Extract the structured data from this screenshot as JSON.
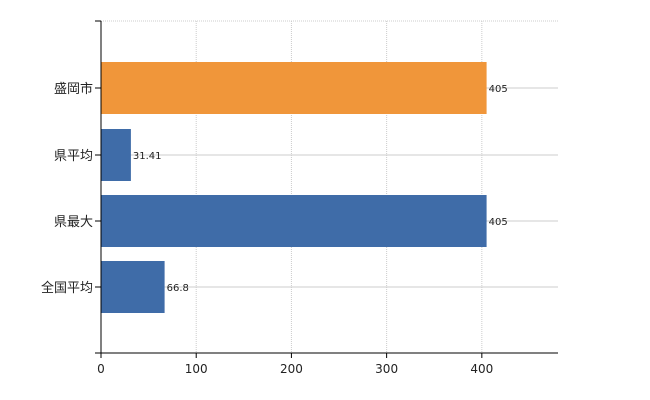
{
  "chart_data": {
    "type": "bar",
    "orientation": "horizontal",
    "categories": [
      "盛岡市",
      "県平均",
      "県最大",
      "全国平均"
    ],
    "values": [
      405,
      31.41,
      405,
      66.8
    ],
    "value_labels": [
      "405",
      "31.41",
      "405",
      "66.8"
    ],
    "bar_colors": [
      "#f0963a",
      "#3f6ca8",
      "#3f6ca8",
      "#3f6ca8"
    ],
    "xlim": [
      0,
      480
    ],
    "x_ticks": [
      0,
      100,
      200,
      300,
      400
    ],
    "x_tick_labels": [
      "0",
      "100",
      "200",
      "300",
      "400"
    ],
    "grid": true,
    "title": "",
    "xlabel": "",
    "ylabel": ""
  }
}
